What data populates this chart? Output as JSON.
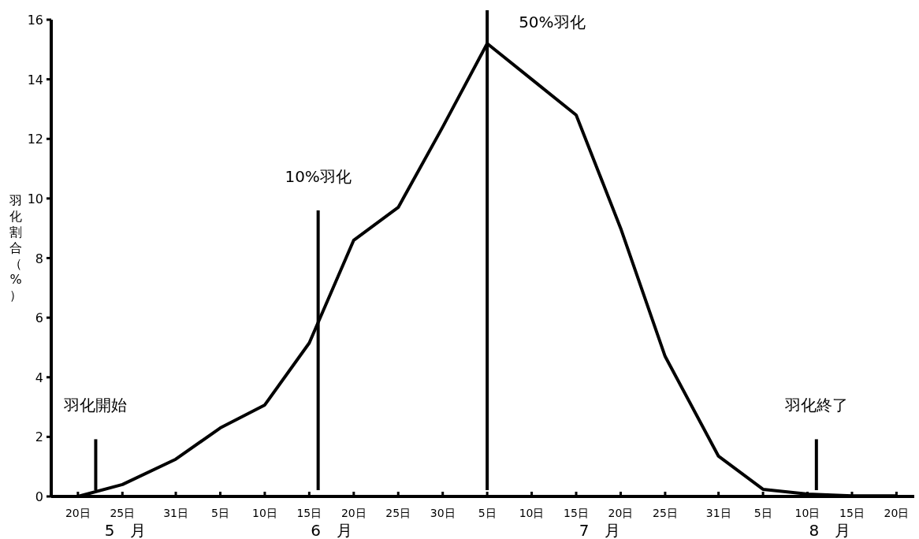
{
  "chart_data": {
    "type": "line",
    "ylabel": "羽化割合（%）",
    "x": [
      "--05-20",
      "--05-25",
      "--05-31",
      "--06-05",
      "--06-10",
      "--06-15",
      "--06-20",
      "--06-25",
      "--06-30",
      "--07-05",
      "--07-10",
      "--07-15",
      "--07-20",
      "--07-25",
      "--07-31",
      "--08-05",
      "--08-10",
      "--08-15",
      "--08-20"
    ],
    "series": [
      {
        "color": "#000000",
        "values": [
          0,
          0.4,
          1.25,
          2.3,
          3.07,
          5.15,
          8.6,
          9.7,
          12.4,
          15.2,
          14.0,
          12.8,
          9.0,
          4.7,
          1.35,
          0.24,
          0.08,
          0.02,
          0.02
        ]
      }
    ],
    "xlim": [
      "--05-17",
      "--08-22"
    ],
    "xticks": [
      {
        "value": "--05-20",
        "label": "20日"
      },
      {
        "value": "--05-25",
        "label": "25日"
      },
      {
        "value": "--05-31",
        "label": "31日"
      },
      {
        "value": "--06-05",
        "label": "5日"
      },
      {
        "value": "--06-10",
        "label": "10日"
      },
      {
        "value": "--06-15",
        "label": "15日"
      },
      {
        "value": "--06-20",
        "label": "20日"
      },
      {
        "value": "--06-25",
        "label": "25日"
      },
      {
        "value": "--06-30",
        "label": "30日"
      },
      {
        "value": "--07-05",
        "label": "5日"
      },
      {
        "value": "--07-10",
        "label": "10日"
      },
      {
        "value": "--07-15",
        "label": "15日"
      },
      {
        "value": "--07-20",
        "label": "20日"
      },
      {
        "value": "--07-25",
        "label": "25日"
      },
      {
        "value": "--07-31",
        "label": "31日"
      },
      {
        "value": "--08-05",
        "label": "5日"
      },
      {
        "value": "--08-10",
        "label": "10日"
      },
      {
        "value": "--08-15",
        "label": "15日"
      },
      {
        "value": "--08-20",
        "label": "20日"
      }
    ],
    "ylim": [
      0,
      16
    ],
    "yticks": [
      0,
      2,
      4,
      6,
      8,
      10,
      12,
      14,
      16
    ],
    "ref_lines": [
      {
        "axis": "x",
        "value": "--05-22",
        "label": "羽化開始"
      },
      {
        "axis": "x",
        "value": "--06-16",
        "label": "10%羽化"
      },
      {
        "axis": "x",
        "value": "--07-05",
        "label": "50%羽化"
      },
      {
        "axis": "x",
        "value": "--08-11",
        "label": "羽化終了"
      }
    ],
    "annotations": [
      "5　月",
      "6　月",
      "7　月",
      "8　月"
    ],
    "marker": "none",
    "line_style": "solid"
  }
}
